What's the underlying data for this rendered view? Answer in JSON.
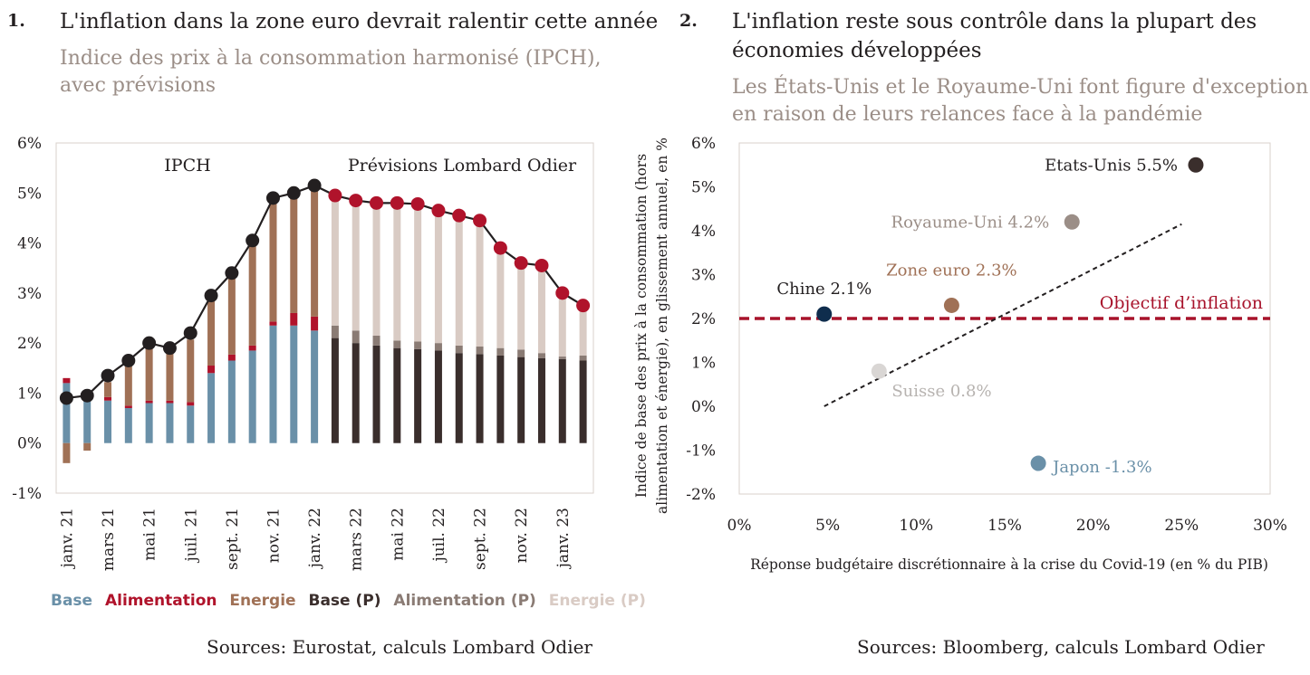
{
  "left": {
    "number": "1.",
    "title": "L'inflation dans la zone euro devrait ralentir cette année",
    "subtitle_line1": "Indice des prix à la consommation harmonisé (IPCH),",
    "subtitle_line2": "avec prévisions",
    "source": "Sources: Eurostat, calculs Lombard Odier",
    "legend": {
      "base": "Base",
      "food": "Alimentation",
      "energy": "Energie",
      "base_p": "Base (P)",
      "food_p": "Alimentation (P)",
      "energy_p": "Energie (P)"
    }
  },
  "right": {
    "number": "2.",
    "title_line1": "L'inflation reste sous contrôle dans la plupart des",
    "title_line2": "économies développées",
    "subtitle_line1": "Les États-Unis et le Royaume-Uni font figure d'exception",
    "subtitle_line2": "en raison de leurs relances face à la pandémie",
    "source": "Sources: Bloomberg, calculs Lombard Odier"
  },
  "colors": {
    "base": "#6a90a8",
    "food": "#b0132b",
    "energy": "#a07156",
    "base_p": "#3a2e2c",
    "food_p": "#8a7b74",
    "energy_p": "#d9cbc4",
    "line": "#231f20",
    "forecast_dot": "#b0132b",
    "target": "#a8132b"
  },
  "chart_data": [
    {
      "type": "bar",
      "stacked": true,
      "annotations": [
        "IPCH",
        "Prévisions Lombard Odier"
      ],
      "yticks": [
        "6%",
        "5%",
        "4%",
        "3%",
        "2%",
        "1%",
        "0%",
        "-1%"
      ],
      "ylim": [
        -1,
        6
      ],
      "x_tick_labels": [
        "janv. 21",
        "mars 21",
        "mai 21",
        "juil. 21",
        "sept. 21",
        "nov. 21",
        "janv. 22",
        "mars 22",
        "mai 22",
        "juil. 22",
        "sept. 22",
        "nov. 22",
        "janv. 23"
      ],
      "categories": [
        "janv. 21",
        "févr. 21",
        "mars 21",
        "avr. 21",
        "mai 21",
        "juin 21",
        "juil. 21",
        "août 21",
        "sept. 21",
        "oct. 21",
        "nov. 21",
        "déc. 21",
        "janv. 22",
        "févr. 22",
        "mars 22",
        "avr. 22",
        "mai 22",
        "juin 22",
        "juil. 22",
        "août 22",
        "sept. 22",
        "oct. 22",
        "nov. 22",
        "déc. 22",
        "janv. 23",
        "févr. 23"
      ],
      "forecast_start_index": 13,
      "series": [
        {
          "name": "Base",
          "values": [
            1.2,
            0.85,
            0.85,
            0.7,
            0.8,
            0.8,
            0.75,
            1.4,
            1.65,
            1.85,
            2.35,
            2.35,
            2.25,
            null,
            null,
            null,
            null,
            null,
            null,
            null,
            null,
            null,
            null,
            null,
            null,
            null
          ]
        },
        {
          "name": "Alimentation",
          "values": [
            0.1,
            0.05,
            0.07,
            0.05,
            0.05,
            0.05,
            0.07,
            0.15,
            0.12,
            0.1,
            0.08,
            0.25,
            0.28,
            null,
            null,
            null,
            null,
            null,
            null,
            null,
            null,
            null,
            null,
            null,
            null,
            null
          ]
        },
        {
          "name": "Energie",
          "values": [
            -0.4,
            -0.15,
            0.3,
            0.9,
            1.05,
            1.05,
            1.25,
            1.35,
            1.55,
            2.05,
            2.45,
            2.35,
            2.6,
            null,
            null,
            null,
            null,
            null,
            null,
            null,
            null,
            null,
            null,
            null,
            null,
            null
          ]
        },
        {
          "name": "Base (P)",
          "values": [
            null,
            null,
            null,
            null,
            null,
            null,
            null,
            null,
            null,
            null,
            null,
            null,
            null,
            2.1,
            2.0,
            1.95,
            1.9,
            1.88,
            1.85,
            1.8,
            1.78,
            1.75,
            1.72,
            1.7,
            1.68,
            1.65
          ]
        },
        {
          "name": "Alimentation (P)",
          "values": [
            null,
            null,
            null,
            null,
            null,
            null,
            null,
            null,
            null,
            null,
            null,
            null,
            null,
            0.25,
            0.25,
            0.2,
            0.15,
            0.15,
            0.15,
            0.15,
            0.15,
            0.15,
            0.15,
            0.1,
            0.05,
            0.1
          ]
        },
        {
          "name": "Energie (P)",
          "values": [
            null,
            null,
            null,
            null,
            null,
            null,
            null,
            null,
            null,
            null,
            null,
            null,
            null,
            2.6,
            2.55,
            2.65,
            2.75,
            2.75,
            2.65,
            2.55,
            2.5,
            2.0,
            1.75,
            1.75,
            1.2,
            1.0
          ]
        }
      ],
      "line_values": [
        0.9,
        0.95,
        1.35,
        1.65,
        2.0,
        1.9,
        2.2,
        2.95,
        3.4,
        4.05,
        4.9,
        5.0,
        5.15,
        4.95,
        4.85,
        4.8,
        4.8,
        4.78,
        4.65,
        4.55,
        4.45,
        3.9,
        3.6,
        3.55,
        3.0,
        2.75
      ]
    },
    {
      "type": "scatter",
      "xlabel": "Réponse budgétaire discrétionnaire à la crise du Covid-19 (en % du PIB)",
      "ylabel_line1": "Indice de base des prix à la consommation (hors",
      "ylabel_line2": "alimentation et énergie), en glissement annuel, en %",
      "xlim": [
        0,
        30
      ],
      "ylim": [
        -2,
        6
      ],
      "xticks": [
        "0%",
        "5%",
        "10%",
        "15%",
        "20%",
        "25%",
        "30%"
      ],
      "yticks": [
        "6%",
        "5%",
        "4%",
        "3%",
        "2%",
        "1%",
        "0%",
        "-1%",
        "-2%"
      ],
      "points": [
        {
          "label": "Etats-Unis",
          "value_label": "5.5%",
          "x": 25.8,
          "y": 5.5,
          "color": "#3a2e2c"
        },
        {
          "label": "Royaume-Uni",
          "value_label": "4.2%",
          "x": 18.8,
          "y": 4.2,
          "color": "#9b8e87"
        },
        {
          "label": "Chine",
          "value_label": "2.1%",
          "x": 4.8,
          "y": 2.1,
          "color": "#0f2d4d"
        },
        {
          "label": "Zone euro",
          "value_label": "2.3%",
          "x": 12.0,
          "y": 2.3,
          "color": "#a07156"
        },
        {
          "label": "Suisse",
          "value_label": "0.8%",
          "x": 7.9,
          "y": 0.8,
          "color": "#d9d6d4"
        },
        {
          "label": "Japon",
          "value_label": "-1.3%",
          "x": 16.9,
          "y": -1.3,
          "color": "#6a90a8"
        }
      ],
      "target_label": "Objectif d’inflation",
      "target_value": 2.0,
      "trend_line": {
        "x1": 4.8,
        "y1": 0.0,
        "x2": 25.0,
        "y2": 4.15
      }
    }
  ]
}
